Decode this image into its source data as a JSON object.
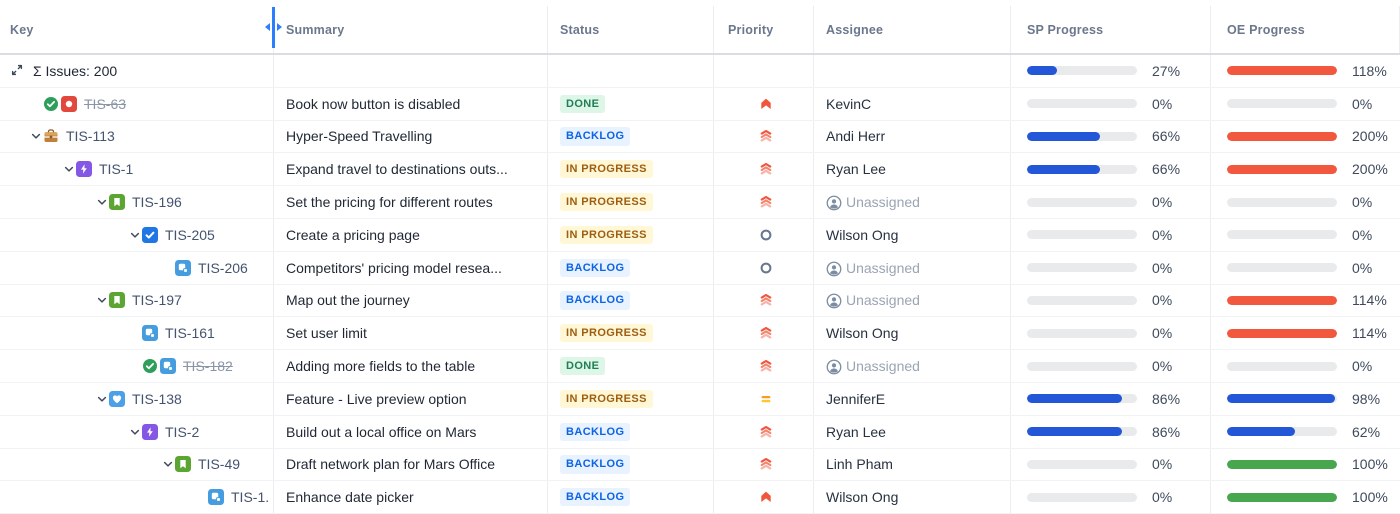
{
  "columns": [
    {
      "label": "Key"
    },
    {
      "label": "Summary"
    },
    {
      "label": "Status"
    },
    {
      "label": "Priority"
    },
    {
      "label": "Assignee"
    },
    {
      "label": "SP Progress"
    },
    {
      "label": "OE Progress"
    }
  ],
  "colors": {
    "bar_blue": "#2456d8",
    "bar_orange": "#f2583e",
    "bar_green": "#47a64e",
    "bar_track": "#e8eaec",
    "resize_handle_blue": "#2b7fff",
    "status_done_bg": "#ddf6e8",
    "status_done_text": "#1f7f53",
    "status_backlog_bg": "#e9f2ff",
    "status_backlog_text": "#0b63e5",
    "status_inprogress_bg": "#fff7d6",
    "status_inprogress_text": "#9e5e10",
    "priority_red": "#f0563c",
    "priority_orange": "#ffab00",
    "priority_gray": "#67778e"
  },
  "rows": [
    {
      "kind": "aggregate",
      "level": 0,
      "icon": "expand-icon",
      "label": "Σ Issues: 200",
      "sp": {
        "value": 27,
        "text": "27%",
        "color": "blue"
      },
      "oe": {
        "value": 118,
        "text": "118%",
        "color": "orange"
      }
    },
    {
      "kind": "issue",
      "key": "TIS-63",
      "struck": true,
      "level": 1,
      "chevron": false,
      "done": true,
      "type": "bug",
      "summary": "Book now button is disabled",
      "status": "DONE",
      "status_style": "done",
      "priority": "high",
      "assignee": "KevinC",
      "unassigned": false,
      "sp": {
        "value": 0,
        "text": "0%",
        "color": "none"
      },
      "oe": {
        "value": 0,
        "text": "0%",
        "color": "none"
      }
    },
    {
      "kind": "issue",
      "key": "TIS-113",
      "struck": false,
      "level": 1,
      "chevron": true,
      "done": false,
      "type": "briefcase",
      "summary": "Hyper-Speed Travelling",
      "status": "BACKLOG",
      "status_style": "backlog",
      "priority": "highest",
      "assignee": "Andi Herr",
      "unassigned": false,
      "sp": {
        "value": 66,
        "text": "66%",
        "color": "blue"
      },
      "oe": {
        "value": 200,
        "text": "200%",
        "color": "orange"
      }
    },
    {
      "kind": "issue",
      "key": "TIS-1",
      "struck": false,
      "level": 2,
      "chevron": true,
      "done": false,
      "type": "epic",
      "summary": "Expand travel to destinations outs...",
      "status": "IN PROGRESS",
      "status_style": "inprogress",
      "priority": "highest",
      "assignee": "Ryan Lee",
      "unassigned": false,
      "sp": {
        "value": 66,
        "text": "66%",
        "color": "blue"
      },
      "oe": {
        "value": 200,
        "text": "200%",
        "color": "orange"
      }
    },
    {
      "kind": "issue",
      "key": "TIS-196",
      "struck": false,
      "level": 3,
      "chevron": true,
      "done": false,
      "type": "story",
      "summary": "Set the pricing for different routes",
      "status": "IN PROGRESS",
      "status_style": "inprogress",
      "priority": "highest",
      "assignee": "Unassigned",
      "unassigned": true,
      "sp": {
        "value": 0,
        "text": "0%",
        "color": "none"
      },
      "oe": {
        "value": 0,
        "text": "0%",
        "color": "none"
      }
    },
    {
      "kind": "issue",
      "key": "TIS-205",
      "struck": false,
      "level": 4,
      "chevron": true,
      "done": false,
      "type": "task",
      "summary": "Create a pricing page",
      "status": "IN PROGRESS",
      "status_style": "inprogress",
      "priority": "circle",
      "assignee": "Wilson Ong",
      "unassigned": false,
      "sp": {
        "value": 0,
        "text": "0%",
        "color": "none"
      },
      "oe": {
        "value": 0,
        "text": "0%",
        "color": "none"
      }
    },
    {
      "kind": "issue",
      "key": "TIS-206",
      "struck": false,
      "level": 5,
      "chevron": false,
      "done": false,
      "type": "subtask",
      "summary": "Competitors' pricing model resea...",
      "status": "BACKLOG",
      "status_style": "backlog",
      "priority": "circle",
      "assignee": "Unassigned",
      "unassigned": true,
      "sp": {
        "value": 0,
        "text": "0%",
        "color": "none"
      },
      "oe": {
        "value": 0,
        "text": "0%",
        "color": "none"
      }
    },
    {
      "kind": "issue",
      "key": "TIS-197",
      "struck": false,
      "level": 3,
      "chevron": true,
      "done": false,
      "type": "story",
      "summary": "Map out the journey",
      "status": "BACKLOG",
      "status_style": "backlog",
      "priority": "highest",
      "assignee": "Unassigned",
      "unassigned": true,
      "sp": {
        "value": 0,
        "text": "0%",
        "color": "none"
      },
      "oe": {
        "value": 114,
        "text": "114%",
        "color": "orange"
      }
    },
    {
      "kind": "issue",
      "key": "TIS-161",
      "struck": false,
      "level": 4,
      "chevron": false,
      "done": false,
      "type": "subtask",
      "summary": "Set user limit",
      "status": "IN PROGRESS",
      "status_style": "inprogress",
      "priority": "highest",
      "assignee": "Wilson Ong",
      "unassigned": false,
      "sp": {
        "value": 0,
        "text": "0%",
        "color": "none"
      },
      "oe": {
        "value": 114,
        "text": "114%",
        "color": "orange"
      }
    },
    {
      "kind": "issue",
      "key": "TIS-182",
      "struck": true,
      "level": 4,
      "chevron": false,
      "done": true,
      "type": "subtask",
      "summary": "Adding more fields to the table",
      "status": "DONE",
      "status_style": "done",
      "priority": "highest",
      "assignee": "Unassigned",
      "unassigned": true,
      "sp": {
        "value": 0,
        "text": "0%",
        "color": "none"
      },
      "oe": {
        "value": 0,
        "text": "0%",
        "color": "none"
      }
    },
    {
      "kind": "issue",
      "key": "TIS-138",
      "struck": false,
      "level": 3,
      "chevron": true,
      "done": false,
      "type": "feature",
      "summary": "Feature - Live preview option",
      "status": "IN PROGRESS",
      "status_style": "inprogress",
      "priority": "medium",
      "assignee": "JenniferE",
      "unassigned": false,
      "sp": {
        "value": 86,
        "text": "86%",
        "color": "blue"
      },
      "oe": {
        "value": 98,
        "text": "98%",
        "color": "blue"
      }
    },
    {
      "kind": "issue",
      "key": "TIS-2",
      "struck": false,
      "level": 4,
      "chevron": true,
      "done": false,
      "type": "epic",
      "summary": "Build out a local office on Mars",
      "status": "BACKLOG",
      "status_style": "backlog",
      "priority": "highest",
      "assignee": "Ryan Lee",
      "unassigned": false,
      "sp": {
        "value": 86,
        "text": "86%",
        "color": "blue"
      },
      "oe": {
        "value": 62,
        "text": "62%",
        "color": "blue"
      }
    },
    {
      "kind": "issue",
      "key": "TIS-49",
      "struck": false,
      "level": 5,
      "chevron": true,
      "done": false,
      "type": "story",
      "summary": "Draft network plan for Mars Office",
      "status": "BACKLOG",
      "status_style": "backlog",
      "priority": "highest",
      "assignee": "Linh Pham",
      "unassigned": false,
      "sp": {
        "value": 0,
        "text": "0%",
        "color": "none"
      },
      "oe": {
        "value": 100,
        "text": "100%",
        "color": "green"
      }
    },
    {
      "kind": "issue",
      "key": "TIS-1.",
      "struck": false,
      "level": 6,
      "chevron": false,
      "done": false,
      "type": "subtask",
      "summary": "Enhance date picker",
      "status": "BACKLOG",
      "status_style": "backlog",
      "priority": "high",
      "assignee": "Wilson Ong",
      "unassigned": false,
      "sp": {
        "value": 0,
        "text": "0%",
        "color": "none"
      },
      "oe": {
        "value": 100,
        "text": "100%",
        "color": "green"
      }
    }
  ]
}
